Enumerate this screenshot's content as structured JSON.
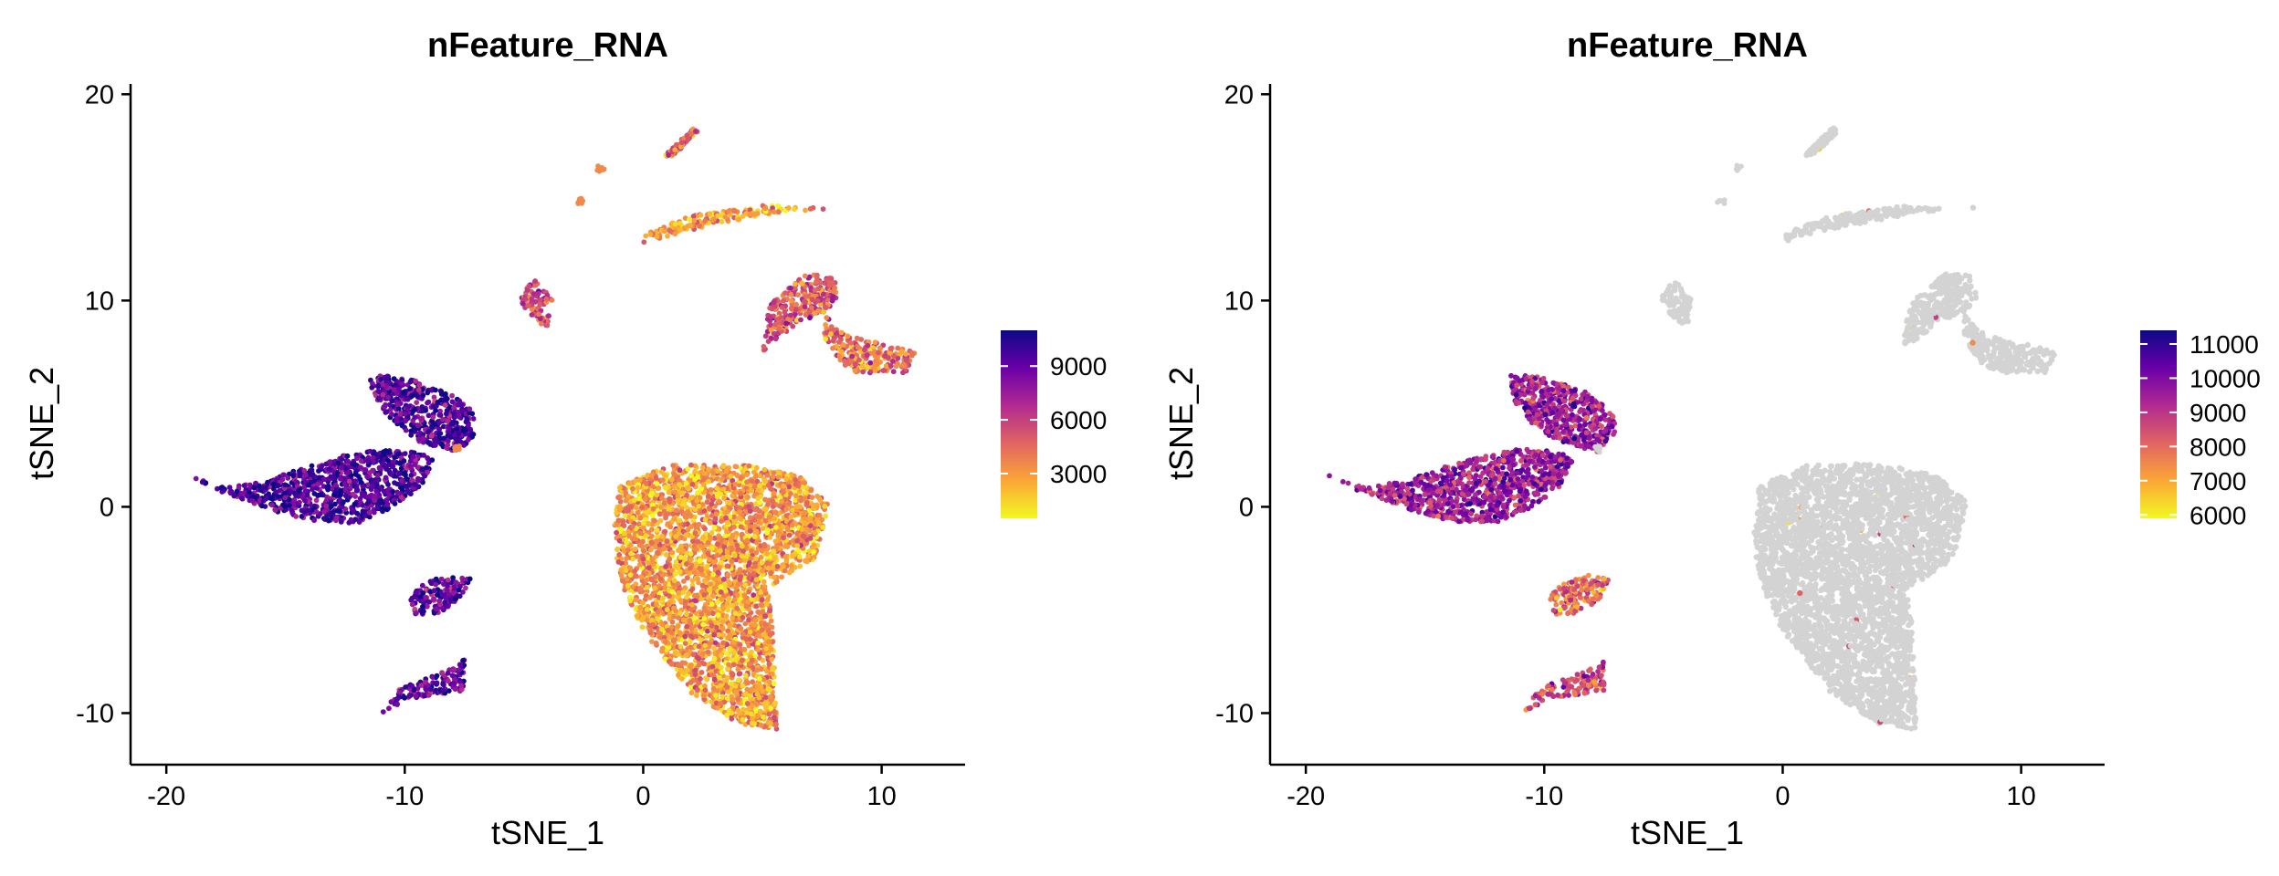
{
  "chart_data": [
    {
      "type": "scatter",
      "title": "nFeature_RNA",
      "xlabel": "tSNE_1",
      "ylabel": "tSNE_2",
      "xlim": [
        -21.5,
        13.5
      ],
      "ylim": [
        -12.5,
        20.5
      ],
      "xticks": [
        -20,
        -10,
        0,
        10
      ],
      "yticks": [
        -10,
        0,
        10,
        20
      ],
      "legend": {
        "position": "right",
        "ticks": [
          3000,
          6000,
          9000
        ],
        "min": 500,
        "max": 11000,
        "colors": [
          "#f0f921",
          "#fca636",
          "#e16462",
          "#b12a90",
          "#6a00a8",
          "#0d0887"
        ]
      },
      "clusters": [
        {
          "name": "",
          "cx": 1.5,
          "cy": -1.5,
          "value": 3000
        },
        {
          "name": "",
          "cx": -14,
          "cy": 1.2,
          "value": 9500
        },
        {
          "name": "",
          "cx": -9.5,
          "cy": 4.5,
          "value": 9500
        },
        {
          "name": "",
          "cx": -8.3,
          "cy": -4.3,
          "value": 9000
        },
        {
          "name": "",
          "cx": -9.2,
          "cy": -8.7,
          "value": 9000
        },
        {
          "name": "",
          "cx": 7.3,
          "cy": 9.3,
          "value": 5000
        },
        {
          "name": "",
          "cx": 9.8,
          "cy": 7.2,
          "value": 4200
        },
        {
          "name": "",
          "cx": -4.3,
          "cy": 9.8,
          "value": 5500
        },
        {
          "name": "",
          "cx": 5.5,
          "cy": 13.9,
          "value": 3000
        },
        {
          "name": "",
          "cx": 1.6,
          "cy": 17.8,
          "value": 4000
        }
      ]
    },
    {
      "type": "scatter",
      "title": "nFeature_RNA",
      "xlabel": "tSNE_1",
      "ylabel": "tSNE_2",
      "xlim": [
        -21.5,
        13.5
      ],
      "ylim": [
        -12.5,
        20.5
      ],
      "xticks": [
        -20,
        -10,
        0,
        10
      ],
      "yticks": [
        -10,
        0,
        10,
        20
      ],
      "legend": {
        "position": "right",
        "ticks": [
          6000,
          7000,
          8000,
          9000,
          10000,
          11000
        ],
        "min": 5900,
        "max": 11400,
        "colors": [
          "#f0f921",
          "#fca636",
          "#e16462",
          "#b12a90",
          "#6a00a8",
          "#0d0887"
        ]
      },
      "below_threshold_color": "#d3d3d3",
      "highlighted_clusters": [
        {
          "name": "",
          "cx": -14,
          "cy": 1.2,
          "value": 9500
        },
        {
          "name": "",
          "cx": -9.5,
          "cy": 4.5,
          "value": 9500
        },
        {
          "name": "",
          "cx": -8.3,
          "cy": -4.3,
          "value": 8000
        },
        {
          "name": "",
          "cx": -9.2,
          "cy": -8.7,
          "value": 8500
        }
      ]
    }
  ]
}
